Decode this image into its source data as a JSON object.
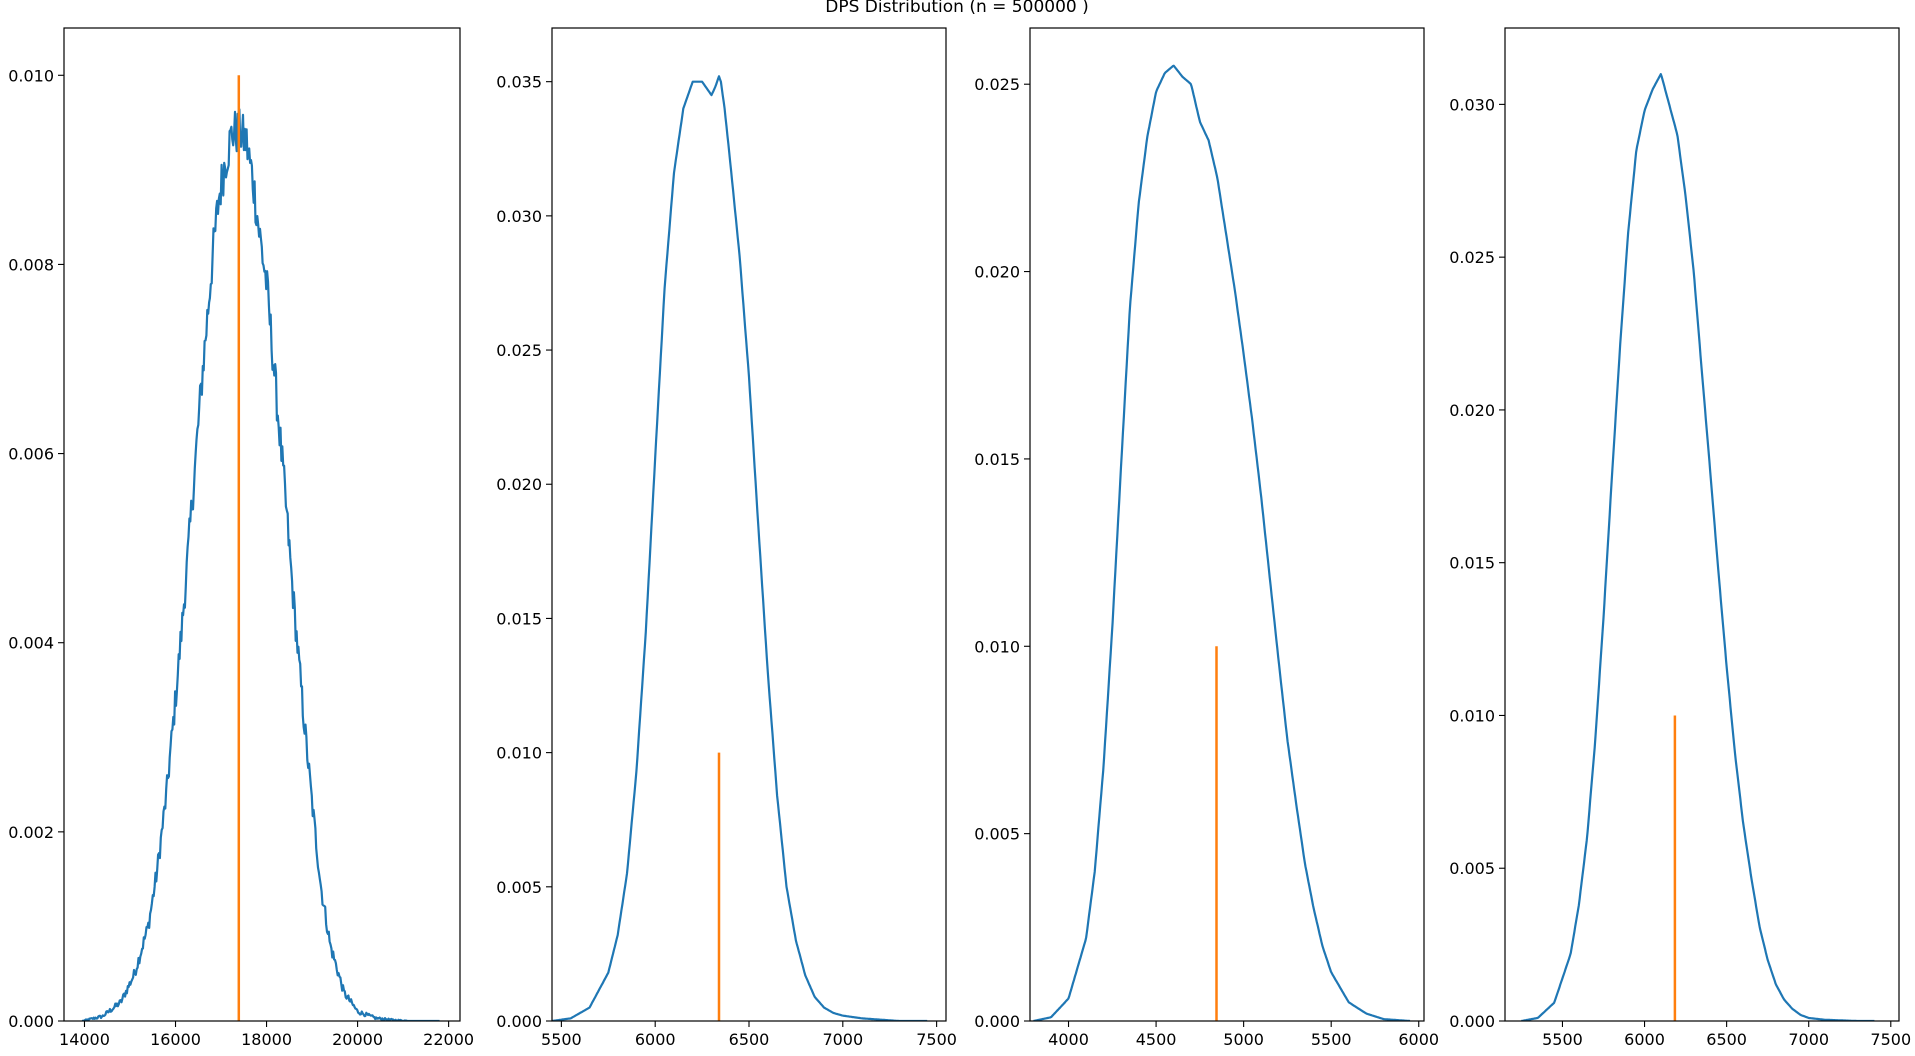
{
  "figure": {
    "suptitle": "DPS Distribution (n = 500000 )"
  },
  "chart_data": [
    {
      "type": "line",
      "title": "",
      "xlabel": "",
      "ylabel": "",
      "xlim": [
        13550,
        22250
      ],
      "ylim": [
        0,
        0.0105
      ],
      "xticks": [
        14000,
        16000,
        18000,
        20000,
        22000
      ],
      "xtick_labels": [
        "14000",
        "16000",
        "18000",
        "20000",
        "22000"
      ],
      "yticks": [
        0.0,
        0.002,
        0.004,
        0.006,
        0.008,
        0.01
      ],
      "ytick_labels": [
        "0.000",
        "0.002",
        "0.004",
        "0.006",
        "0.008",
        "0.010"
      ],
      "grid": false,
      "noise": 0.00025,
      "series": [
        {
          "kind": "density",
          "color": "#1f77b4",
          "x": [
            13950,
            14400,
            14800,
            15100,
            15400,
            15600,
            15800,
            16000,
            16200,
            16400,
            16600,
            16800,
            16950,
            17100,
            17250,
            17400,
            17550,
            17700,
            17850,
            18000,
            18200,
            18400,
            18600,
            18800,
            19000,
            19200,
            19400,
            19700,
            20000,
            20400,
            20800,
            21200,
            21800
          ],
          "y": [
            0.0,
            5e-05,
            0.0002,
            0.0005,
            0.001,
            0.0016,
            0.0024,
            0.0034,
            0.0045,
            0.0057,
            0.0069,
            0.008,
            0.0087,
            0.0091,
            0.0094,
            0.0094,
            0.0093,
            0.0089,
            0.0083,
            0.0078,
            0.0067,
            0.0056,
            0.0044,
            0.0033,
            0.0023,
            0.0014,
            0.0008,
            0.0003,
            0.0001,
            3e-05,
            1e-05,
            0.0,
            0.0
          ]
        },
        {
          "kind": "marker",
          "color": "#ff7f0e",
          "x": [
            17390,
            17390
          ],
          "y": [
            0.0,
            0.01
          ]
        }
      ]
    },
    {
      "type": "line",
      "title": "",
      "xlabel": "",
      "ylabel": "",
      "xlim": [
        5450,
        7550
      ],
      "ylim": [
        0,
        0.037
      ],
      "xticks": [
        5500,
        6000,
        6500,
        7000,
        7500
      ],
      "xtick_labels": [
        "5500",
        "6000",
        "6500",
        "7000",
        "7500"
      ],
      "yticks": [
        0.0,
        0.005,
        0.01,
        0.015,
        0.02,
        0.025,
        0.03,
        0.035
      ],
      "ytick_labels": [
        "0.000",
        "0.005",
        "0.010",
        "0.015",
        "0.020",
        "0.025",
        "0.030",
        "0.035"
      ],
      "grid": false,
      "noise": 0,
      "series": [
        {
          "kind": "density",
          "color": "#1f77b4",
          "x": [
            5450,
            5550,
            5650,
            5750,
            5800,
            5850,
            5900,
            5950,
            6000,
            6050,
            6100,
            6150,
            6200,
            6250,
            6300,
            6320,
            6340,
            6350,
            6370,
            6400,
            6450,
            6500,
            6550,
            6600,
            6650,
            6700,
            6750,
            6800,
            6850,
            6900,
            6950,
            7000,
            7100,
            7200,
            7300,
            7450
          ],
          "y": [
            0.0,
            0.0001,
            0.0005,
            0.0018,
            0.0032,
            0.0055,
            0.0093,
            0.0145,
            0.021,
            0.0273,
            0.0316,
            0.034,
            0.035,
            0.035,
            0.0345,
            0.0348,
            0.0352,
            0.035,
            0.034,
            0.032,
            0.0285,
            0.024,
            0.0184,
            0.013,
            0.0084,
            0.005,
            0.003,
            0.0017,
            0.0009,
            0.0005,
            0.0003,
            0.0002,
            0.0001,
            5e-05,
            0.0,
            0.0
          ]
        },
        {
          "kind": "marker",
          "color": "#ff7f0e",
          "x": [
            6340,
            6340
          ],
          "y": [
            0.0,
            0.01
          ]
        }
      ]
    },
    {
      "type": "line",
      "title": "",
      "xlabel": "",
      "ylabel": "",
      "xlim": [
        3780,
        6030
      ],
      "ylim": [
        0,
        0.0265
      ],
      "xticks": [
        4000,
        4500,
        5000,
        5500,
        6000
      ],
      "xtick_labels": [
        "4000",
        "4500",
        "5000",
        "5500",
        "6000"
      ],
      "yticks": [
        0.0,
        0.005,
        0.01,
        0.015,
        0.02,
        0.025
      ],
      "ytick_labels": [
        "0.000",
        "0.005",
        "0.010",
        "0.015",
        "0.020",
        "0.025"
      ],
      "grid": false,
      "noise": 0,
      "series": [
        {
          "kind": "density",
          "color": "#1f77b4",
          "x": [
            3800,
            3900,
            4000,
            4100,
            4150,
            4200,
            4250,
            4300,
            4350,
            4400,
            4450,
            4500,
            4550,
            4600,
            4650,
            4700,
            4750,
            4800,
            4850,
            4900,
            4950,
            5000,
            5050,
            5100,
            5150,
            5200,
            5250,
            5300,
            5350,
            5400,
            5450,
            5500,
            5600,
            5700,
            5800,
            5950
          ],
          "y": [
            0.0,
            0.0001,
            0.0006,
            0.0022,
            0.004,
            0.0068,
            0.0105,
            0.0148,
            0.019,
            0.0218,
            0.0236,
            0.0248,
            0.0253,
            0.0255,
            0.0252,
            0.025,
            0.024,
            0.0235,
            0.0225,
            0.021,
            0.0195,
            0.0178,
            0.016,
            0.014,
            0.0118,
            0.0096,
            0.0075,
            0.0058,
            0.0042,
            0.003,
            0.002,
            0.0013,
            0.0005,
            0.0002,
            5e-05,
            0.0
          ]
        },
        {
          "kind": "marker",
          "color": "#ff7f0e",
          "x": [
            4845,
            4845
          ],
          "y": [
            0.0,
            0.01
          ]
        }
      ]
    },
    {
      "type": "line",
      "title": "",
      "xlabel": "",
      "ylabel": "",
      "xlim": [
        5150,
        7550
      ],
      "ylim": [
        0,
        0.0325
      ],
      "xticks": [
        5500,
        6000,
        6500,
        7000,
        7500
      ],
      "xtick_labels": [
        "5500",
        "6000",
        "6500",
        "7000",
        "7500"
      ],
      "yticks": [
        0.0,
        0.005,
        0.01,
        0.015,
        0.02,
        0.025,
        0.03
      ],
      "ytick_labels": [
        "0.000",
        "0.005",
        "0.010",
        "0.015",
        "0.020",
        "0.025",
        "0.030"
      ],
      "grid": false,
      "noise": 0,
      "series": [
        {
          "kind": "density",
          "color": "#1f77b4",
          "x": [
            5250,
            5350,
            5450,
            5550,
            5600,
            5650,
            5700,
            5750,
            5800,
            5850,
            5900,
            5950,
            6000,
            6050,
            6100,
            6150,
            6200,
            6250,
            6300,
            6350,
            6400,
            6450,
            6500,
            6550,
            6600,
            6650,
            6700,
            6750,
            6800,
            6850,
            6900,
            6950,
            7000,
            7100,
            7200,
            7300,
            7400
          ],
          "y": [
            0.0,
            0.0001,
            0.0006,
            0.0022,
            0.0038,
            0.006,
            0.0092,
            0.0132,
            0.0177,
            0.022,
            0.0258,
            0.0285,
            0.0298,
            0.0305,
            0.031,
            0.03,
            0.029,
            0.027,
            0.0245,
            0.0212,
            0.018,
            0.0147,
            0.0116,
            0.0088,
            0.0065,
            0.0047,
            0.0031,
            0.002,
            0.0012,
            0.0007,
            0.0004,
            0.0002,
            0.0001,
            4e-05,
            2e-05,
            0.0,
            0.0
          ]
        },
        {
          "kind": "marker",
          "color": "#ff7f0e",
          "x": [
            6185,
            6185
          ],
          "y": [
            0.0,
            0.01
          ]
        }
      ]
    }
  ]
}
